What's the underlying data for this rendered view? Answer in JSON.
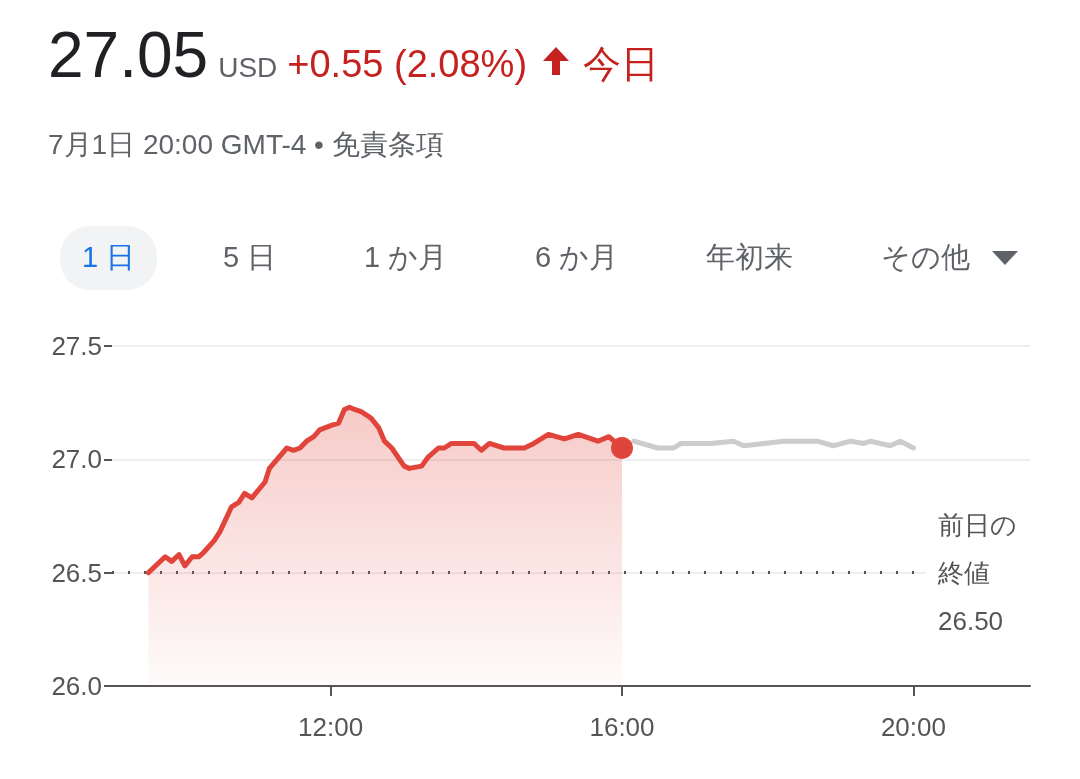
{
  "chart_data": {
    "type": "area",
    "title": "27.05",
    "subtitle": "7月1日 20:00 GMT-4 • 免責条項",
    "annotations": [
      "USD",
      "+0.55 (2.08%)",
      "今日",
      "1 日",
      "5 日",
      "1 か月",
      "6 か月",
      "年初来",
      "その他"
    ],
    "series": [
      {
        "color": "#e0443a",
        "x": [
          9.5,
          9.73,
          9.82,
          9.92,
          10.0,
          10.1,
          10.19,
          10.26,
          10.4,
          10.48,
          10.64,
          10.74,
          10.82,
          10.92,
          11.1,
          11.16,
          11.4,
          11.49,
          11.58,
          11.67,
          11.77,
          11.85,
          12.01,
          12.11,
          12.19,
          12.26,
          12.33,
          12.42,
          12.52,
          12.56,
          12.66,
          12.74,
          12.84,
          13.01,
          13.08,
          13.25,
          13.34,
          13.48,
          13.56,
          13.66,
          13.84,
          13.97,
          14.07,
          14.18,
          14.38,
          14.66,
          14.79,
          14.99,
          15.21,
          15.4,
          15.67,
          15.82,
          16.0
        ],
        "values": [
          26.5,
          26.57,
          26.55,
          26.58,
          26.53,
          26.57,
          26.57,
          26.59,
          26.64,
          26.68,
          26.79,
          26.81,
          26.85,
          26.83,
          26.9,
          26.96,
          27.05,
          27.04,
          27.05,
          27.08,
          27.1,
          27.13,
          27.15,
          27.16,
          27.22,
          27.23,
          27.22,
          27.21,
          27.19,
          27.18,
          27.14,
          27.08,
          27.05,
          26.97,
          26.96,
          26.97,
          27.01,
          27.05,
          27.05,
          27.07,
          27.07,
          27.07,
          27.04,
          27.07,
          27.05,
          27.05,
          27.07,
          27.11,
          27.09,
          27.11,
          27.08,
          27.1,
          27.05
        ]
      },
      {
        "type": "line",
        "color": "#cccccc",
        "x": [
          16.16,
          16.49,
          16.71,
          16.81,
          17.22,
          17.53,
          17.67,
          17.95,
          18.22,
          18.68,
          18.9,
          19.14,
          19.32,
          19.41,
          19.68,
          19.82,
          20.0
        ],
        "values": [
          27.08,
          27.05,
          27.05,
          27.07,
          27.07,
          27.08,
          27.06,
          27.07,
          27.08,
          27.08,
          27.06,
          27.08,
          27.07,
          27.08,
          27.06,
          27.08,
          27.05
        ]
      }
    ],
    "xlim": [
      9,
      21.6
    ],
    "xticks": [
      {
        "value": 12,
        "label": "12:00"
      },
      {
        "value": 16,
        "label": "16:00"
      },
      {
        "value": 20,
        "label": "20:00"
      }
    ],
    "ylim": [
      26,
      27.5
    ],
    "yticks": [
      {
        "value": 26,
        "label": "26.0"
      },
      {
        "value": 26.5,
        "label": "26.5"
      },
      {
        "value": 27,
        "label": "27.0"
      },
      27.5
    ],
    "ref_lines": [
      {
        "axis": "y",
        "value": 26.5,
        "label": "前日の終値\n26.50",
        "color": "#555555",
        "line_style": "dotted"
      }
    ],
    "grid": "y"
  }
}
